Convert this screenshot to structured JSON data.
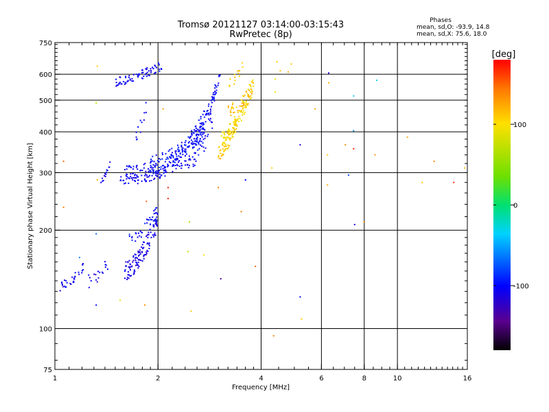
{
  "chart_data": {
    "type": "scatter",
    "title": "Tromsø 20121127 03:14:00-03:15:43",
    "subtitle": "RwPretec (8p)",
    "xlabel": "Frequency [MHz]",
    "ylabel": "Stationary phase Virtual Height [km]",
    "x_scale": "log",
    "y_scale": "log",
    "xlim": [
      1,
      16
    ],
    "ylim": [
      75,
      750
    ],
    "x_ticks": [
      1,
      2,
      4,
      6,
      8,
      10,
      16
    ],
    "y_ticks": [
      75,
      100,
      200,
      300,
      400,
      500,
      600,
      750
    ],
    "grid": true,
    "stats": {
      "heading": "Phases",
      "line_o": "mean, sd,O: -93.9, 14.8",
      "line_x": "mean, sd,X:  75.6, 18.0"
    },
    "colorbar": {
      "label": "[deg]",
      "range": [
        -180,
        180
      ],
      "ticks": [
        100,
        0,
        -100
      ],
      "colormap": "rainbow"
    },
    "series": [
      {
        "traces": [
          {
            "x_from": 1.03,
            "x_to": 1.22,
            "y_from": 135,
            "y_to": 155,
            "phase": -105,
            "n": 30,
            "jitter": 0.035
          },
          {
            "x_from": 1.25,
            "x_to": 1.45,
            "y_from": 140,
            "y_to": 160,
            "phase": -108,
            "n": 18,
            "jitter": 0.05
          },
          {
            "x_from": 1.6,
            "x_to": 2.0,
            "y_from": 150,
            "y_to": 215,
            "phase": -110,
            "n": 120,
            "jitter": 0.07
          },
          {
            "x_from": 1.65,
            "x_to": 2.0,
            "y_from": 190,
            "y_to": 228,
            "phase": -100,
            "n": 40,
            "jitter": 0.05
          },
          {
            "x_from": 1.55,
            "x_to": 2.6,
            "y_from": 285,
            "y_to": 330,
            "phase": -105,
            "n": 110,
            "jitter": 0.04
          },
          {
            "x_from": 1.6,
            "x_to": 2.8,
            "y_from": 300,
            "y_to": 370,
            "phase": -102,
            "n": 100,
            "jitter": 0.05
          },
          {
            "x_from": 1.9,
            "x_to": 2.9,
            "y_from": 320,
            "y_to": 430,
            "phase": -98,
            "n": 90,
            "jitter": 0.06
          },
          {
            "x_from": 2.2,
            "x_to": 2.95,
            "y_from": 340,
            "y_to": 520,
            "phase": -100,
            "n": 70,
            "jitter": 0.06
          },
          {
            "x_from": 2.55,
            "x_to": 3.05,
            "y_from": 380,
            "y_to": 620,
            "phase": -103,
            "n": 55,
            "jitter": 0.05
          },
          {
            "x_from": 1.36,
            "x_to": 1.45,
            "y_from": 285,
            "y_to": 318,
            "phase": -108,
            "n": 14,
            "jitter": 0.02
          },
          {
            "x_from": 1.7,
            "x_to": 1.85,
            "y_from": 390,
            "y_to": 475,
            "phase": -105,
            "n": 12,
            "jitter": 0.06
          },
          {
            "x_from": 1.5,
            "x_to": 2.05,
            "y_from": 570,
            "y_to": 640,
            "phase": -106,
            "n": 70,
            "jitter": 0.035
          },
          {
            "x_from": 3.0,
            "x_to": 3.4,
            "y_from": 345,
            "y_to": 430,
            "phase": 110,
            "n": 60,
            "jitter": 0.05
          },
          {
            "x_from": 3.05,
            "x_to": 3.8,
            "y_from": 380,
            "y_to": 560,
            "phase": 100,
            "n": 110,
            "jitter": 0.06
          },
          {
            "x_from": 3.2,
            "x_to": 3.8,
            "y_from": 460,
            "y_to": 560,
            "phase": 115,
            "n": 40,
            "jitter": 0.05
          },
          {
            "x_from": 3.2,
            "x_to": 3.55,
            "y_from": 560,
            "y_to": 640,
            "phase": 105,
            "n": 14,
            "jitter": 0.04
          }
        ],
        "points": [
          {
            "x": 1.33,
            "y": 635,
            "phase": 110
          },
          {
            "x": 1.32,
            "y": 490,
            "phase": 80
          },
          {
            "x": 1.06,
            "y": 325,
            "phase": 150
          },
          {
            "x": 1.33,
            "y": 285,
            "phase": 120
          },
          {
            "x": 1.06,
            "y": 235,
            "phase": 140
          },
          {
            "x": 1.18,
            "y": 165,
            "phase": -60
          },
          {
            "x": 1.32,
            "y": 195,
            "phase": -70
          },
          {
            "x": 1.32,
            "y": 118,
            "phase": -100
          },
          {
            "x": 1.55,
            "y": 122,
            "phase": 90
          },
          {
            "x": 1.83,
            "y": 118,
            "phase": 130
          },
          {
            "x": 1.85,
            "y": 245,
            "phase": 150
          },
          {
            "x": 2.07,
            "y": 470,
            "phase": 130
          },
          {
            "x": 2.14,
            "y": 270,
            "phase": 170
          },
          {
            "x": 2.14,
            "y": 250,
            "phase": 170
          },
          {
            "x": 2.47,
            "y": 212,
            "phase": 60
          },
          {
            "x": 2.45,
            "y": 172,
            "phase": 70
          },
          {
            "x": 2.5,
            "y": 113,
            "phase": 110
          },
          {
            "x": 2.72,
            "y": 168,
            "phase": 100
          },
          {
            "x": 3.0,
            "y": 270,
            "phase": 140
          },
          {
            "x": 3.05,
            "y": 142,
            "phase": -140
          },
          {
            "x": 3.5,
            "y": 228,
            "phase": 140
          },
          {
            "x": 3.6,
            "y": 285,
            "phase": -100
          },
          {
            "x": 3.85,
            "y": 155,
            "phase": 150
          },
          {
            "x": 4.3,
            "y": 310,
            "phase": 110
          },
          {
            "x": 4.35,
            "y": 95,
            "phase": 140
          },
          {
            "x": 4.4,
            "y": 530,
            "phase": 100
          },
          {
            "x": 4.4,
            "y": 580,
            "phase": 90
          },
          {
            "x": 4.45,
            "y": 655,
            "phase": 110
          },
          {
            "x": 4.55,
            "y": 615,
            "phase": 115
          },
          {
            "x": 4.8,
            "y": 610,
            "phase": 120
          },
          {
            "x": 4.9,
            "y": 645,
            "phase": 110
          },
          {
            "x": 5.2,
            "y": 365,
            "phase": -115
          },
          {
            "x": 5.2,
            "y": 125,
            "phase": -105
          },
          {
            "x": 5.25,
            "y": 107,
            "phase": 110
          },
          {
            "x": 5.75,
            "y": 470,
            "phase": 125
          },
          {
            "x": 6.25,
            "y": 340,
            "phase": 110
          },
          {
            "x": 6.25,
            "y": 275,
            "phase": 120
          },
          {
            "x": 6.3,
            "y": 605,
            "phase": -110
          },
          {
            "x": 6.3,
            "y": 565,
            "phase": 120
          },
          {
            "x": 7.05,
            "y": 365,
            "phase": 135
          },
          {
            "x": 7.2,
            "y": 295,
            "phase": -80
          },
          {
            "x": 7.45,
            "y": 515,
            "phase": -40
          },
          {
            "x": 7.45,
            "y": 403,
            "phase": -55
          },
          {
            "x": 7.45,
            "y": 355,
            "phase": 170
          },
          {
            "x": 7.5,
            "y": 208,
            "phase": -110
          },
          {
            "x": 8.0,
            "y": 212,
            "phase": 140
          },
          {
            "x": 8.6,
            "y": 340,
            "phase": 130
          },
          {
            "x": 8.7,
            "y": 575,
            "phase": -30
          },
          {
            "x": 10.7,
            "y": 385,
            "phase": 125
          },
          {
            "x": 11.8,
            "y": 280,
            "phase": 110
          },
          {
            "x": 12.8,
            "y": 325,
            "phase": 140
          },
          {
            "x": 14.6,
            "y": 280,
            "phase": 170
          },
          {
            "x": 15.7,
            "y": 310,
            "phase": 120
          }
        ]
      }
    ]
  }
}
